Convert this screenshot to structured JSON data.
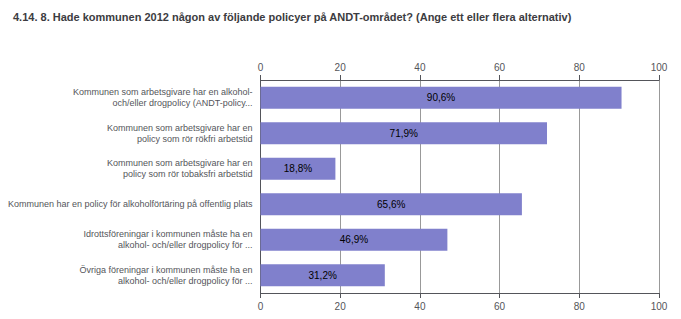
{
  "chart_data": {
    "type": "bar",
    "orientation": "horizontal",
    "title": "4.14. 8. Hade kommunen 2012 någon av följande policyer på ANDT-området? (Ange ett eller flera alternativ)",
    "categories": [
      "Kommunen som arbetsgivare har en alkohol-\noch/eller drogpolicy (ANDT-policy...",
      "Kommunen som arbetsgivare har en\npolicy som rör rökfri arbetstid",
      "Kommunen som arbetsgivare har en\npolicy som rör tobaksfri arbetstid",
      "Kommunen har en policy för alkoholförtäring på offentlig plats",
      "Idrottsföreningar i kommunen måste ha en\nalkohol- och/eller drogpolicy för ...",
      "Övriga föreningar i kommunen måste ha en\nalkohol- och/eller drogpolicy för ..."
    ],
    "values": [
      90.6,
      71.9,
      18.8,
      65.6,
      46.9,
      31.2
    ],
    "value_labels": [
      "90,6%",
      "71,9%",
      "18,8%",
      "65,6%",
      "46,9%",
      "31,2%"
    ],
    "data_labels": true,
    "color": "#8080cc",
    "xlim": [
      0,
      100
    ],
    "xticks": [
      0,
      20,
      40,
      60,
      80,
      100
    ],
    "grid": true
  }
}
